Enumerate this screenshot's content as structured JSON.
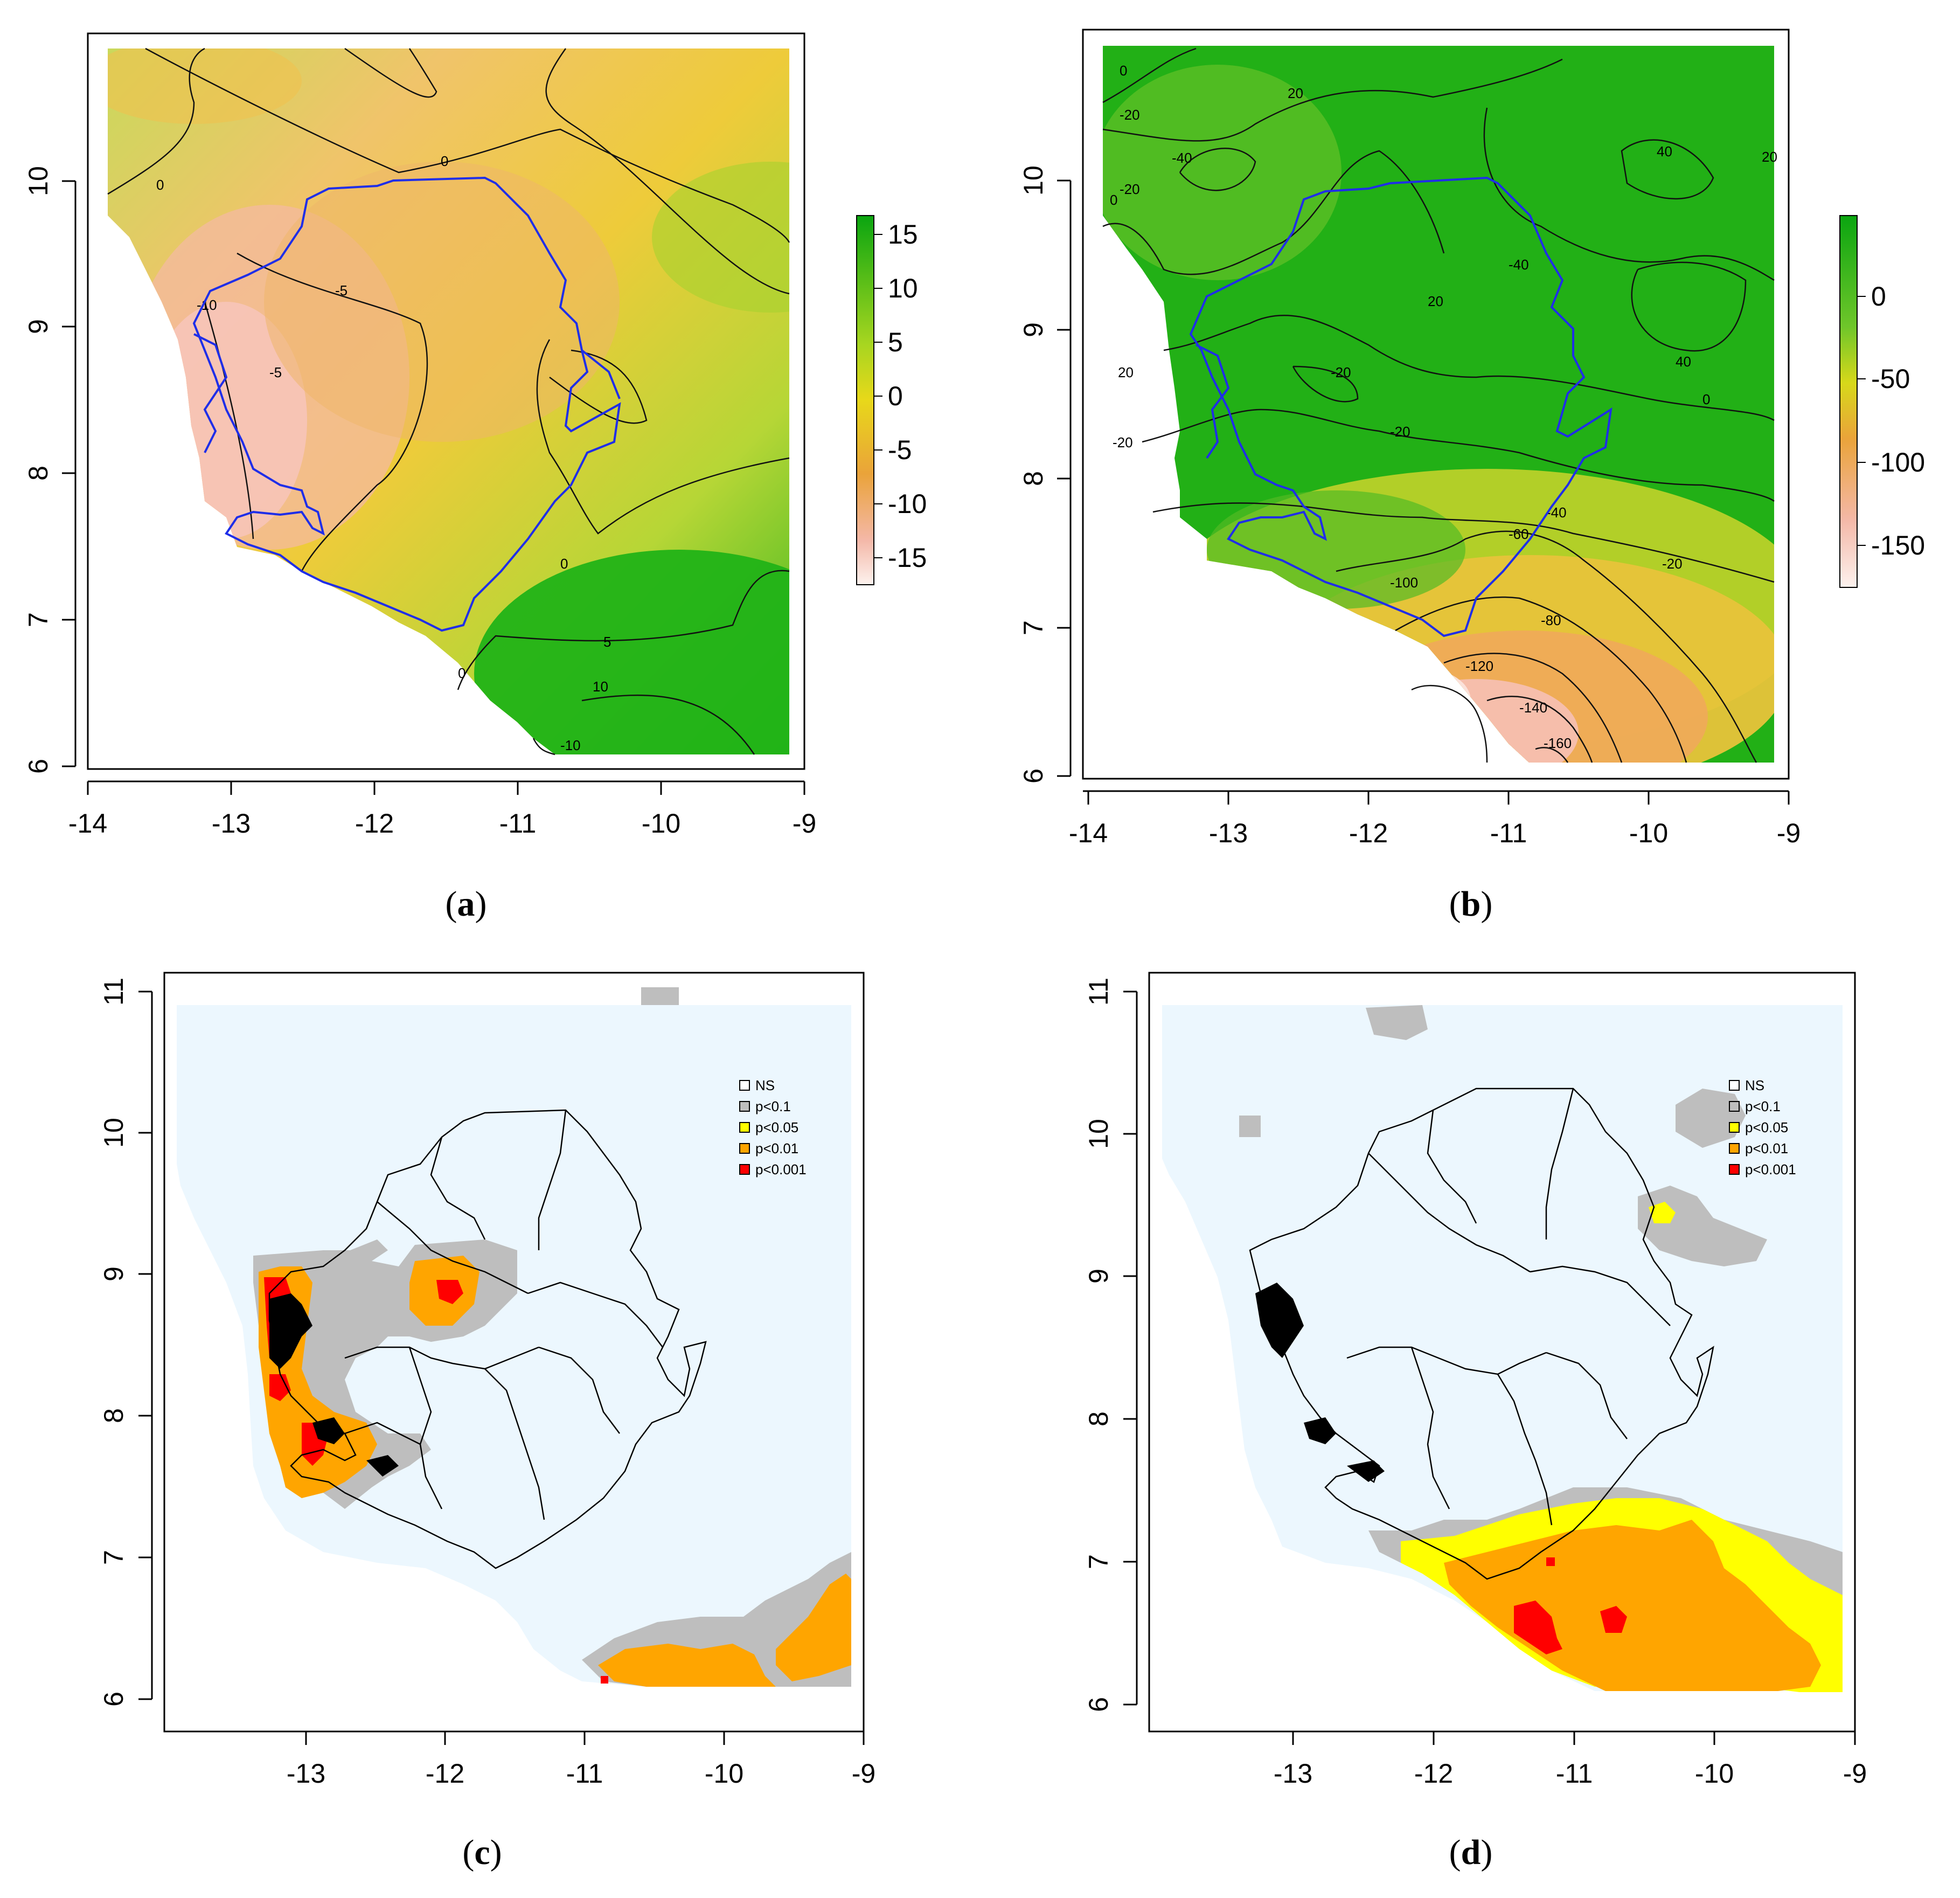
{
  "panels": {
    "a": {
      "caption_open": "(",
      "caption_letter": "a",
      "caption_close": ")",
      "x_ticks": [
        "-14",
        "-13",
        "-12",
        "-11",
        "-10",
        "-9"
      ],
      "y_ticks": [
        "6",
        "7",
        "8",
        "9",
        "10"
      ],
      "colorbar_labels": [
        "15",
        "10",
        "5",
        "0",
        "-5",
        "-10",
        "-15"
      ],
      "contour_labels": [
        "0",
        "0",
        "-5",
        "-10",
        "-5",
        "0",
        "5",
        "10",
        "-10",
        "0"
      ]
    },
    "b": {
      "caption_open": "(",
      "caption_letter": "b",
      "caption_close": ")",
      "x_ticks": [
        "-14",
        "-13",
        "-12",
        "-11",
        "-10",
        "-9"
      ],
      "y_ticks": [
        "6",
        "7",
        "8",
        "9",
        "10"
      ],
      "colorbar_labels": [
        "0",
        "-50",
        "-100",
        "-150"
      ],
      "contour_labels": [
        "0",
        "-20",
        "20",
        "-40",
        "-20",
        "40",
        "20",
        "-40",
        "40",
        "-20",
        "-20",
        "0",
        "-20",
        "-60",
        "-40",
        "-100",
        "-80",
        "-120",
        "-140",
        "-160",
        "20",
        "0",
        "-20",
        "20"
      ]
    },
    "c": {
      "caption_open": "(",
      "caption_letter": "c",
      "caption_close": ")",
      "x_ticks": [
        "-13",
        "-12",
        "-11",
        "-10",
        "-9"
      ],
      "y_ticks": [
        "6",
        "7",
        "8",
        "9",
        "10",
        "11"
      ],
      "legend": [
        "NS",
        "p<0.1",
        "p<0.05",
        "p<0.01",
        "p<0.001"
      ]
    },
    "d": {
      "caption_open": "(",
      "caption_letter": "d",
      "caption_close": ")",
      "x_ticks": [
        "-13",
        "-12",
        "-11",
        "-10",
        "-9"
      ],
      "y_ticks": [
        "6",
        "7",
        "8",
        "9",
        "10",
        "11"
      ],
      "legend": [
        "NS",
        "p<0.1",
        "p<0.05",
        "p<0.01",
        "p<0.001"
      ]
    }
  },
  "colors": {
    "green": "#22b319",
    "yellow_green": "#c9d81a",
    "yellow": "#e6d717",
    "orange": "#e9aa3a",
    "pink": "#f2b5a6",
    "ns_fill": "#ecf7fe",
    "gray": "#bebebe",
    "sig_yellow": "#ffff00",
    "sig_orange": "#ffa500",
    "sig_red": "#ff0000",
    "border_blue": "#1f2ee8"
  }
}
